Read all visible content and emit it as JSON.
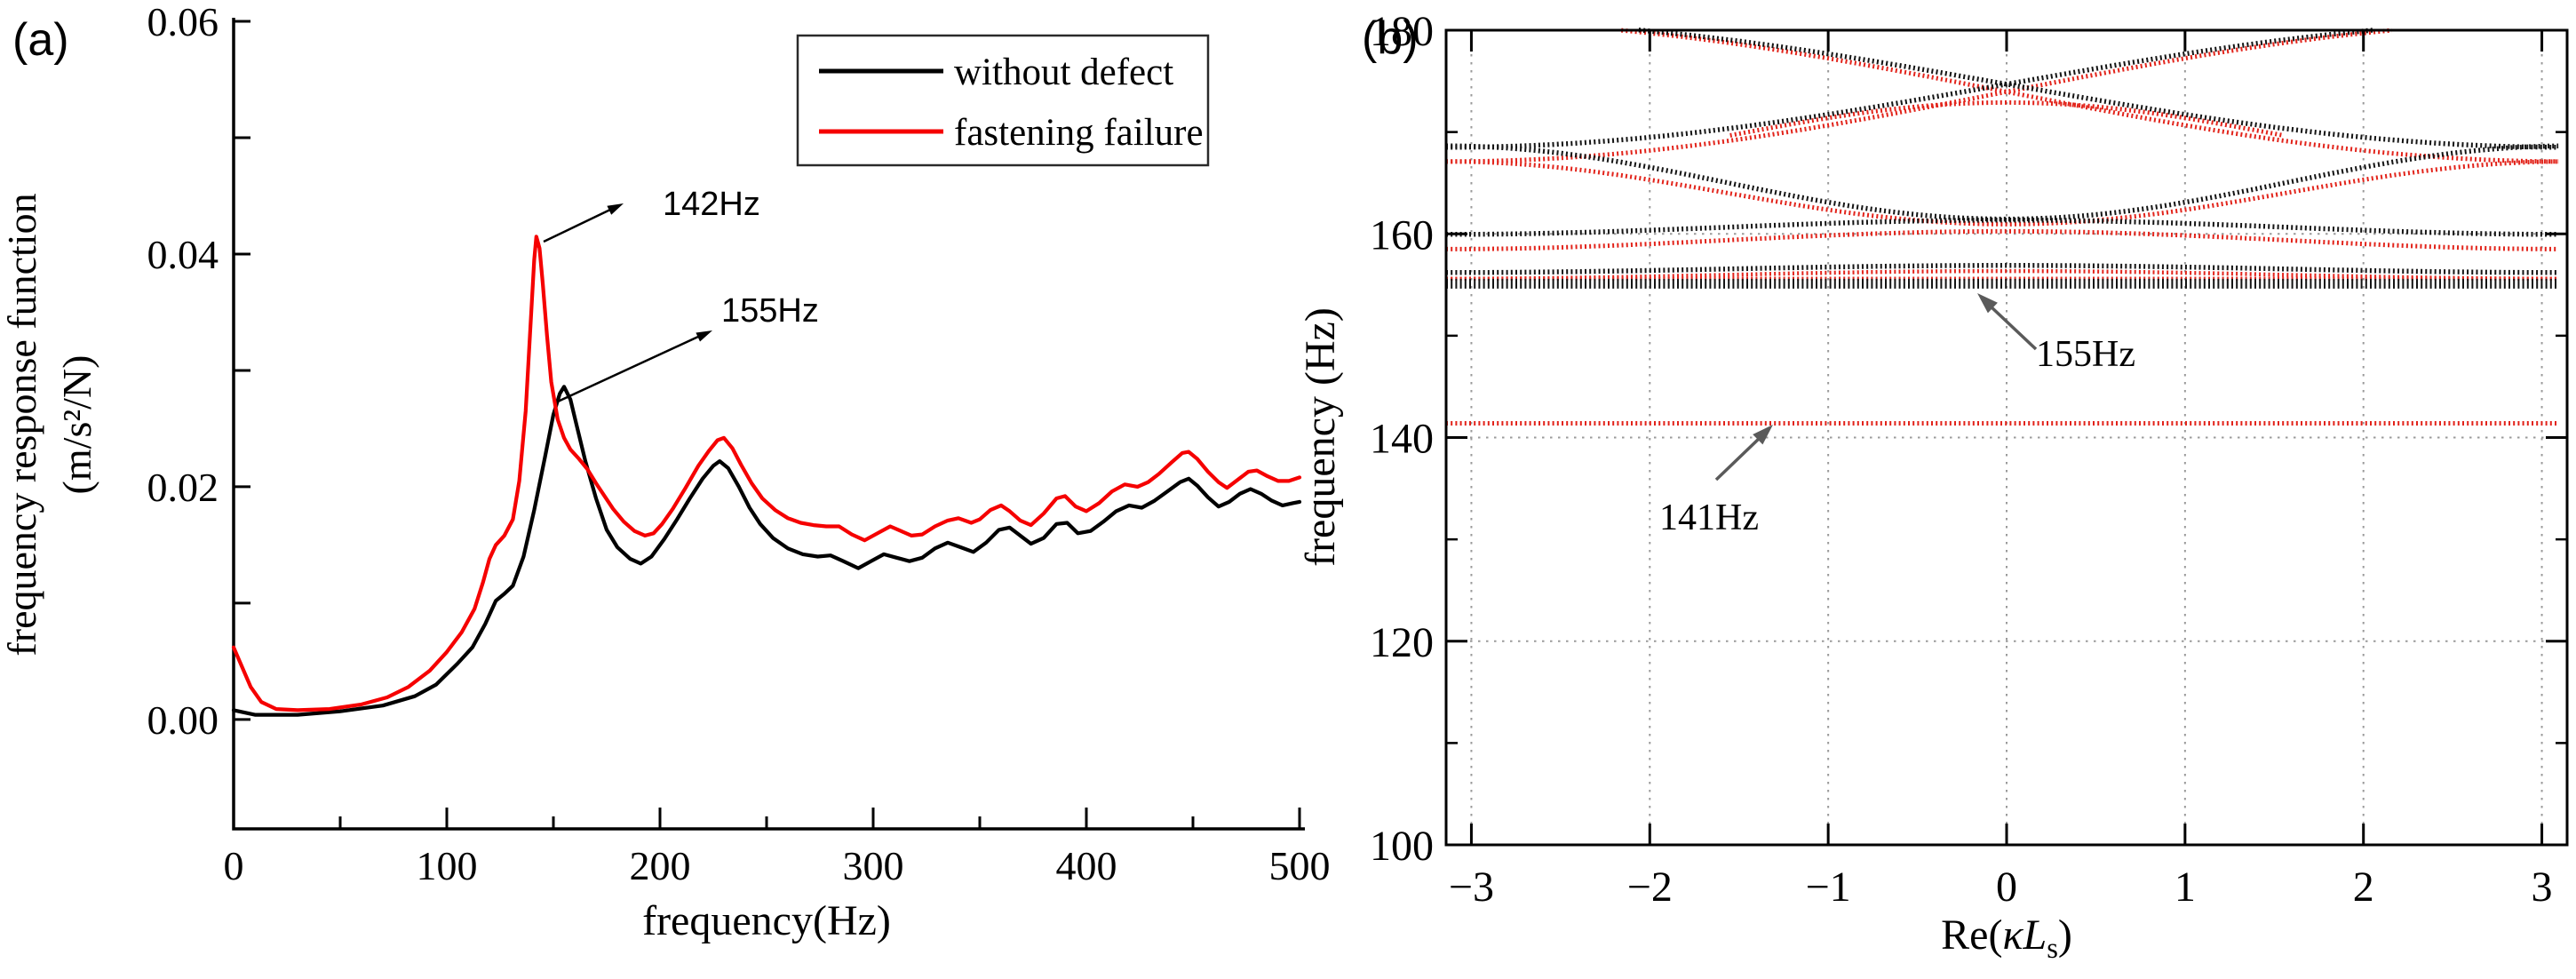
{
  "figure": {
    "panel_a_label": "(a)",
    "panel_b_label": "(b)",
    "colors": {
      "curve_red": "#f50000",
      "curve_black": "#000000",
      "band_red": "#e2231a",
      "band_black": "#141414",
      "grid_gray": "#9a9a9a",
      "arrow_gray": "#5a5a5a"
    }
  },
  "chart_data": [
    {
      "type": "line",
      "title": "",
      "xlabel": "frequency(Hz)",
      "ylabel_line1": "frequency response function",
      "ylabel_line2": "(m/s²/N)",
      "xlim": [
        0,
        500
      ],
      "ylim": [
        -0.0094,
        0.06
      ],
      "xticks_major": [
        0,
        100,
        200,
        300,
        400,
        500
      ],
      "xticks_minor": [
        50,
        150,
        250,
        350,
        450
      ],
      "yticks": [
        0,
        0.01,
        0.02,
        0.03,
        0.04,
        0.05,
        0.06
      ],
      "ytick_labels": [
        {
          "v": 0.0,
          "label": "0.00"
        },
        {
          "v": 0.02,
          "label": "0.02"
        },
        {
          "v": 0.04,
          "label": "0.04"
        },
        {
          "v": 0.06,
          "label": "0.06"
        }
      ],
      "legend": [
        {
          "label": "without defect",
          "color": "#000000"
        },
        {
          "label": "fastening failure",
          "color": "#f50000"
        }
      ],
      "annotations": [
        {
          "text": "142Hz",
          "points_to_hz": 142
        },
        {
          "text": "155Hz",
          "points_to_hz": 155
        }
      ],
      "series": [
        {
          "name": "without defect",
          "color": "#000000",
          "points": [
            [
              0,
              0.0008
            ],
            [
              10,
              0.0004
            ],
            [
              30,
              0.0004
            ],
            [
              50,
              0.0007
            ],
            [
              70,
              0.0012
            ],
            [
              85,
              0.002
            ],
            [
              95,
              0.003
            ],
            [
              105,
              0.0048
            ],
            [
              112,
              0.0062
            ],
            [
              118,
              0.0082
            ],
            [
              123,
              0.0102
            ],
            [
              127,
              0.0108
            ],
            [
              131,
              0.0115
            ],
            [
              136,
              0.014
            ],
            [
              141,
              0.018
            ],
            [
              146,
              0.0225
            ],
            [
              150,
              0.0262
            ],
            [
              153,
              0.028
            ],
            [
              155,
              0.0286
            ],
            [
              158,
              0.0275
            ],
            [
              161,
              0.0252
            ],
            [
              165,
              0.0222
            ],
            [
              170,
              0.019
            ],
            [
              175,
              0.0163
            ],
            [
              180,
              0.0148
            ],
            [
              186,
              0.0138
            ],
            [
              191,
              0.0134
            ],
            [
              196,
              0.014
            ],
            [
              202,
              0.0155
            ],
            [
              208,
              0.0172
            ],
            [
              214,
              0.019
            ],
            [
              220,
              0.0207
            ],
            [
              225,
              0.0218
            ],
            [
              228,
              0.0222
            ],
            [
              232,
              0.0216
            ],
            [
              237,
              0.02
            ],
            [
              242,
              0.0182
            ],
            [
              247,
              0.0168
            ],
            [
              253,
              0.0156
            ],
            [
              260,
              0.0147
            ],
            [
              267,
              0.0142
            ],
            [
              274,
              0.014
            ],
            [
              280,
              0.0141
            ],
            [
              286,
              0.0136
            ],
            [
              293,
              0.013
            ],
            [
              299,
              0.0136
            ],
            [
              305,
              0.0142
            ],
            [
              311,
              0.0139
            ],
            [
              317,
              0.0136
            ],
            [
              323,
              0.0139
            ],
            [
              329,
              0.0147
            ],
            [
              335,
              0.0152
            ],
            [
              341,
              0.0148
            ],
            [
              347,
              0.0144
            ],
            [
              353,
              0.0152
            ],
            [
              359,
              0.0163
            ],
            [
              364,
              0.0165
            ],
            [
              369,
              0.0158
            ],
            [
              374,
              0.0151
            ],
            [
              380,
              0.0156
            ],
            [
              386,
              0.0168
            ],
            [
              391,
              0.0169
            ],
            [
              396,
              0.016
            ],
            [
              402,
              0.0162
            ],
            [
              408,
              0.017
            ],
            [
              414,
              0.0179
            ],
            [
              420,
              0.0184
            ],
            [
              426,
              0.0182
            ],
            [
              432,
              0.0188
            ],
            [
              438,
              0.0196
            ],
            [
              444,
              0.0204
            ],
            [
              448,
              0.0207
            ],
            [
              452,
              0.0201
            ],
            [
              457,
              0.0191
            ],
            [
              462,
              0.0183
            ],
            [
              467,
              0.0187
            ],
            [
              472,
              0.0194
            ],
            [
              477,
              0.0198
            ],
            [
              482,
              0.0194
            ],
            [
              487,
              0.0188
            ],
            [
              492,
              0.0184
            ],
            [
              497,
              0.0186
            ],
            [
              500,
              0.0187
            ]
          ]
        },
        {
          "name": "fastening failure",
          "color": "#f50000",
          "points": [
            [
              0,
              0.0062
            ],
            [
              4,
              0.0045
            ],
            [
              8,
              0.0028
            ],
            [
              13,
              0.0015
            ],
            [
              20,
              0.0009
            ],
            [
              30,
              0.0008
            ],
            [
              45,
              0.0009
            ],
            [
              60,
              0.0013
            ],
            [
              72,
              0.0019
            ],
            [
              82,
              0.0028
            ],
            [
              92,
              0.0042
            ],
            [
              100,
              0.0058
            ],
            [
              107,
              0.0075
            ],
            [
              113,
              0.0095
            ],
            [
              117,
              0.0118
            ],
            [
              120,
              0.0138
            ],
            [
              123,
              0.015
            ],
            [
              127,
              0.0158
            ],
            [
              131,
              0.0172
            ],
            [
              134,
              0.0205
            ],
            [
              137,
              0.0265
            ],
            [
              139,
              0.033
            ],
            [
              141,
              0.0395
            ],
            [
              142,
              0.0415
            ],
            [
              143.5,
              0.0405
            ],
            [
              145,
              0.0375
            ],
            [
              147,
              0.033
            ],
            [
              149,
              0.029
            ],
            [
              152,
              0.0258
            ],
            [
              155,
              0.0242
            ],
            [
              158,
              0.0232
            ],
            [
              162,
              0.0224
            ],
            [
              166,
              0.0215
            ],
            [
              170,
              0.0203
            ],
            [
              174,
              0.0192
            ],
            [
              178,
              0.0181
            ],
            [
              183,
              0.017
            ],
            [
              188,
              0.0162
            ],
            [
              193,
              0.0158
            ],
            [
              197,
              0.016
            ],
            [
              201,
              0.0168
            ],
            [
              206,
              0.0181
            ],
            [
              212,
              0.0199
            ],
            [
              218,
              0.0218
            ],
            [
              223,
              0.0231
            ],
            [
              227,
              0.024
            ],
            [
              230,
              0.0242
            ],
            [
              234,
              0.0233
            ],
            [
              238,
              0.0219
            ],
            [
              243,
              0.0203
            ],
            [
              248,
              0.019
            ],
            [
              254,
              0.018
            ],
            [
              260,
              0.0173
            ],
            [
              266,
              0.0169
            ],
            [
              272,
              0.0167
            ],
            [
              278,
              0.0166
            ],
            [
              284,
              0.0166
            ],
            [
              290,
              0.0159
            ],
            [
              296,
              0.0154
            ],
            [
              302,
              0.016
            ],
            [
              308,
              0.0166
            ],
            [
              313,
              0.0162
            ],
            [
              318,
              0.0158
            ],
            [
              323,
              0.0159
            ],
            [
              329,
              0.0166
            ],
            [
              335,
              0.0171
            ],
            [
              340,
              0.0173
            ],
            [
              346,
              0.0169
            ],
            [
              350,
              0.0172
            ],
            [
              355,
              0.018
            ],
            [
              360,
              0.0184
            ],
            [
              364,
              0.0179
            ],
            [
              369,
              0.0171
            ],
            [
              374,
              0.0167
            ],
            [
              380,
              0.0177
            ],
            [
              386,
              0.019
            ],
            [
              390,
              0.0192
            ],
            [
              395,
              0.0183
            ],
            [
              400,
              0.0179
            ],
            [
              406,
              0.0186
            ],
            [
              412,
              0.0196
            ],
            [
              418,
              0.0202
            ],
            [
              424,
              0.02
            ],
            [
              429,
              0.0204
            ],
            [
              434,
              0.0211
            ],
            [
              440,
              0.0221
            ],
            [
              445,
              0.0229
            ],
            [
              448,
              0.023
            ],
            [
              452,
              0.0224
            ],
            [
              457,
              0.0213
            ],
            [
              462,
              0.0204
            ],
            [
              466,
              0.0199
            ],
            [
              471,
              0.0206
            ],
            [
              476,
              0.0213
            ],
            [
              480,
              0.0214
            ],
            [
              485,
              0.0209
            ],
            [
              490,
              0.0205
            ],
            [
              495,
              0.0205
            ],
            [
              500,
              0.0208
            ]
          ]
        }
      ]
    },
    {
      "type": "scatter-bands",
      "title": "",
      "ylabel": "frequency (Hz)",
      "xlabel_parts": [
        {
          "t": "Re(",
          "italic": 0,
          "sub": 0
        },
        {
          "t": "κ",
          "italic": 1,
          "sub": 0
        },
        {
          "t": "L",
          "italic": 1,
          "sub": 0
        },
        {
          "t": "s",
          "italic": 0,
          "sub": 1
        },
        {
          "t": ")",
          "italic": 0,
          "sub": 0
        }
      ],
      "xlim": [
        -3.14159,
        3.14159
      ],
      "ylim": [
        100,
        180
      ],
      "xticks": [
        {
          "v": -3,
          "label": "−3"
        },
        {
          "v": -2,
          "label": "−2"
        },
        {
          "v": -1,
          "label": "−1"
        },
        {
          "v": 0,
          "label": "0"
        },
        {
          "v": 1,
          "label": "1"
        },
        {
          "v": 2,
          "label": "2"
        },
        {
          "v": 3,
          "label": "3"
        }
      ],
      "yticks_major": [
        100,
        120,
        140,
        160,
        180
      ],
      "yticks_minor": [
        110,
        130,
        150,
        170
      ],
      "grid_x": [
        -3,
        -2,
        -1,
        0,
        1,
        2,
        3
      ],
      "grid_y": [
        120,
        140,
        160
      ],
      "annotations": [
        {
          "text": "155Hz",
          "points_to_hz": 155
        },
        {
          "text": "141Hz",
          "points_to_hz": 141
        }
      ],
      "bands": [
        {
          "series": "fastening failure",
          "color": "#e2231a",
          "kind": "sin",
          "c": 173.95,
          "a": 6.85,
          "w": 5
        },
        {
          "series": "fastening failure",
          "color": "#e2231a",
          "kind": "sin",
          "c": 173.95,
          "a": -6.85,
          "w": 5
        },
        {
          "series": "fastening failure",
          "color": "#e2231a",
          "kind": "cos",
          "c": 172.9,
          "a": -3.3,
          "dom": [
            -1.55,
            1.55
          ],
          "w": 5
        },
        {
          "series": "fastening failure",
          "color": "#e2231a",
          "kind": "cos",
          "c": 160.95,
          "a": 3.08,
          "w": 5
        },
        {
          "series": "fastening failure",
          "color": "#e2231a",
          "kind": "cos",
          "c": 160.25,
          "a": -0.875,
          "w": 5
        },
        {
          "series": "fastening failure",
          "color": "#e2231a",
          "kind": "cos",
          "c": 156.35,
          "a": -0.375,
          "w": 4.5
        },
        {
          "series": "fastening failure",
          "color": "#e2231a",
          "kind": "flat",
          "c": 155.6,
          "w": 4.5
        },
        {
          "series": "fastening failure",
          "color": "#e2231a",
          "kind": "flat",
          "c": 141.4,
          "w": 5
        },
        {
          "series": "without defect",
          "color": "#141414",
          "kind": "sin",
          "c": 174.7,
          "a": 6.2,
          "w": 5.5
        },
        {
          "series": "without defect",
          "color": "#141414",
          "kind": "sin",
          "c": 174.7,
          "a": -6.2,
          "w": 5.5
        },
        {
          "series": "without defect",
          "color": "#141414",
          "kind": "cos",
          "c": 161.45,
          "a": 3.594,
          "w": 5.5
        },
        {
          "series": "without defect",
          "color": "#141414",
          "kind": "cos",
          "c": 161.35,
          "a": -0.7,
          "w": 5.5
        },
        {
          "series": "without defect",
          "color": "#141414",
          "kind": "cos",
          "c": 156.9,
          "a": -0.35,
          "w": 5.5
        },
        {
          "series": "without defect",
          "color": "#141414",
          "kind": "flat",
          "c": 155.1,
          "w": 11
        }
      ]
    }
  ]
}
